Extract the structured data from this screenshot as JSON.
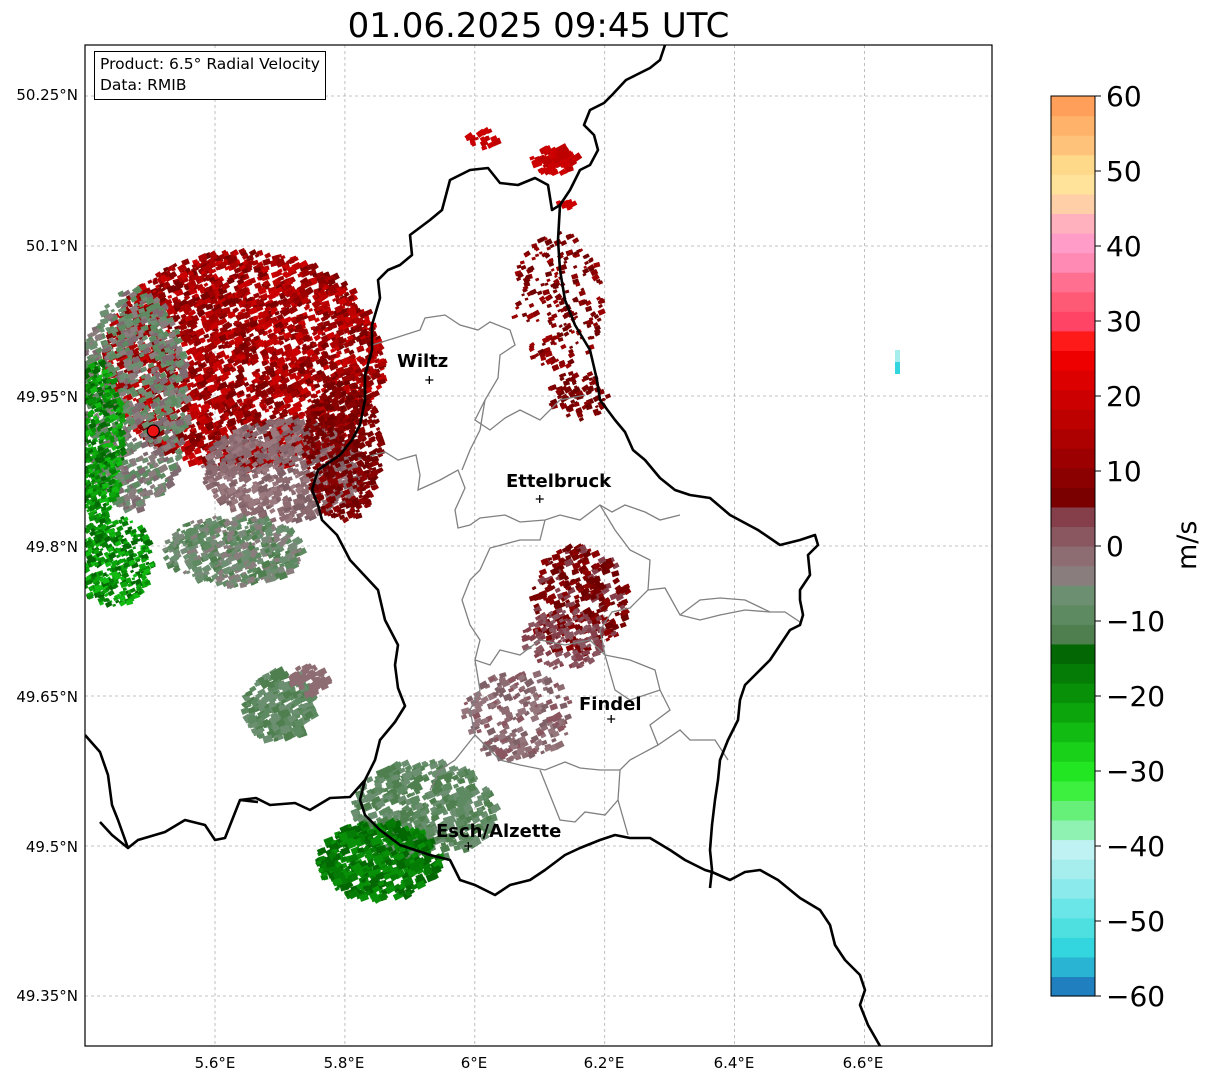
{
  "title": "01.06.2025 09:45 UTC",
  "info": {
    "product": "Product: 6.5° Radial Velocity",
    "source": "Data: RMIB"
  },
  "axes": {
    "lat_ticks": [
      "50.25°N",
      "50.1°N",
      "49.95°N",
      "49.8°N",
      "49.65°N",
      "49.5°N",
      "49.35°N"
    ],
    "lon_ticks": [
      "5.6°E",
      "5.8°E",
      "6°E",
      "6.2°E",
      "6.4°E",
      "6.6°E"
    ],
    "grid": "dashed-light"
  },
  "cities": [
    {
      "name": "Wiltz",
      "lon": 5.93,
      "lat": 49.966
    },
    {
      "name": "Ettelbruck",
      "lon": 6.1,
      "lat": 49.847
    },
    {
      "name": "Findel",
      "lon": 6.21,
      "lat": 49.627
    },
    {
      "name": "Esch/Alzette",
      "lon": 5.99,
      "lat": 49.5
    }
  ],
  "radar_site": {
    "lon": 5.505,
    "lat": 49.915,
    "color": "#ee1111"
  },
  "colorbar": {
    "label": "m/s",
    "min": -60,
    "max": 60,
    "ticks": [
      "60",
      "50",
      "40",
      "30",
      "20",
      "10",
      "0",
      "−10",
      "−20",
      "−30",
      "−40",
      "−50",
      "−60"
    ],
    "colors": [
      "#1f7fbf",
      "#2ab4d4",
      "#33d6de",
      "#4ee0e0",
      "#6ae6e8",
      "#8aeaec",
      "#a6eeee",
      "#bff2f2",
      "#8ff2b2",
      "#66f07a",
      "#3df040",
      "#22e622",
      "#1ad11a",
      "#12bb12",
      "#0ca60c",
      "#089008",
      "#057c05",
      "#036803",
      "#4f7f4f",
      "#5e8a62",
      "#6b8f70",
      "#8a7d7d",
      "#8d6c72",
      "#8a5761",
      "#843f4a",
      "#7a0000",
      "#8b0000",
      "#9c0000",
      "#ad0000",
      "#bd0000",
      "#cc0000",
      "#dc0000",
      "#ee0000",
      "#ff1a1a",
      "#ff4466",
      "#ff5a75",
      "#ff7090",
      "#ff8bb5",
      "#ff9cc8",
      "#ffb2be",
      "#ffd0a8",
      "#ffe39a",
      "#ffd98a",
      "#ffc27a",
      "#ffb26a",
      "#ff9f5a"
    ]
  }
}
